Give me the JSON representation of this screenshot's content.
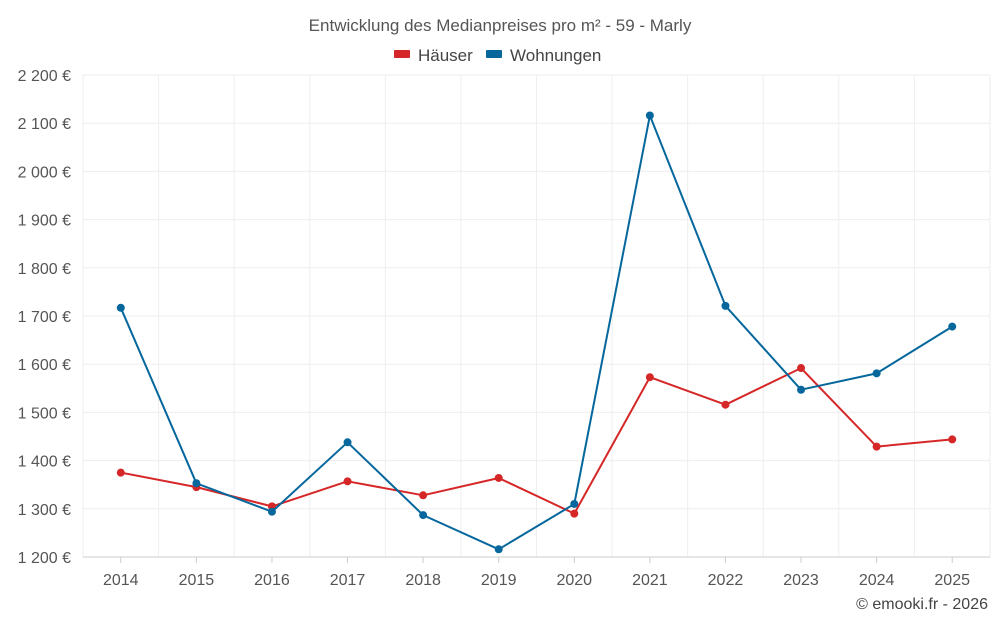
{
  "chart_data": {
    "type": "line",
    "title": "Entwicklung des Medianpreises pro m² - 59 - Marly",
    "categories": [
      "2014",
      "2015",
      "2016",
      "2017",
      "2018",
      "2019",
      "2020",
      "2021",
      "2022",
      "2023",
      "2024",
      "2025"
    ],
    "series": [
      {
        "name": "Häuser",
        "color": "#d62728",
        "values": [
          1375,
          1345,
          1305,
          1357,
          1328,
          1364,
          1290,
          1573,
          1516,
          1592,
          1429,
          1444
        ]
      },
      {
        "name": "Wohnungen",
        "color": "#05679c",
        "values": [
          1717,
          1353,
          1294,
          1438,
          1287,
          1216,
          1310,
          2116,
          1721,
          1547,
          1581,
          1678
        ]
      }
    ],
    "ylim": [
      1200,
      2200
    ],
    "ytick_step": 100,
    "ytick_labels": [
      "1 200 €",
      "1 300 €",
      "1 400 €",
      "1 500 €",
      "1 600 €",
      "1 700 €",
      "1 800 €",
      "1 900 €",
      "2 000 €",
      "2 100 €",
      "2 200 €"
    ],
    "xlabel": "",
    "ylabel": "",
    "grid": true,
    "legend_position": "top-center"
  },
  "credit": "© emooki.fr - 2026"
}
